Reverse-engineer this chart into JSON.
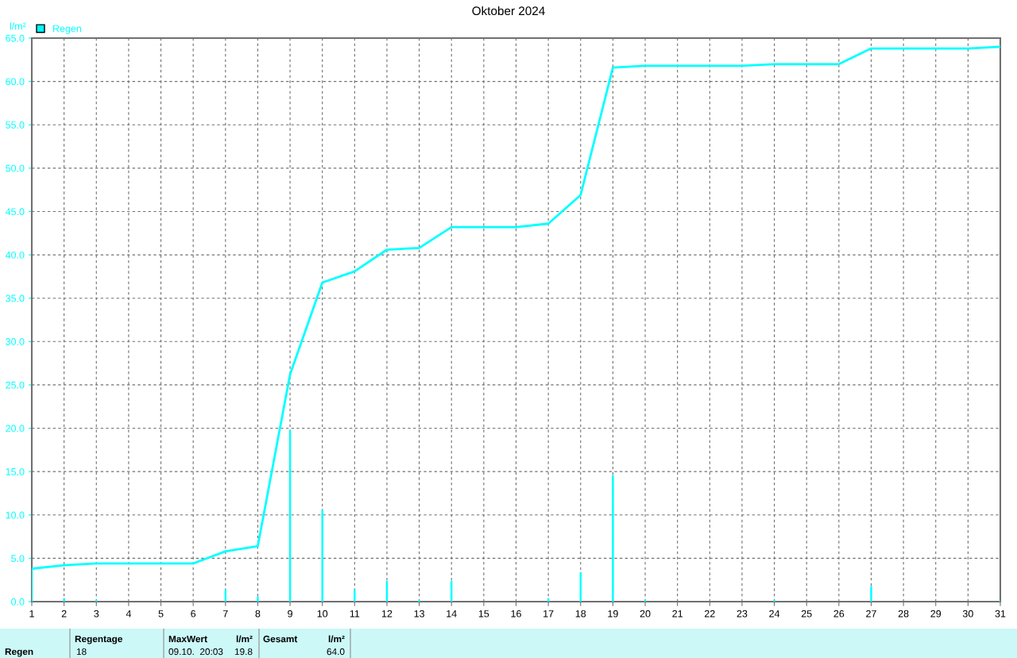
{
  "chart_data": {
    "type": "bar",
    "title": "Oktober 2024",
    "ylabel": "l/m²",
    "x": [
      1,
      2,
      3,
      4,
      5,
      6,
      7,
      8,
      9,
      10,
      11,
      12,
      13,
      14,
      15,
      16,
      17,
      18,
      19,
      20,
      21,
      22,
      23,
      24,
      25,
      26,
      27,
      28,
      29,
      30,
      31
    ],
    "series": [
      {
        "color": "#00ffff",
        "values": [
          3.8,
          0.4,
          0.2,
          null,
          null,
          null,
          1.4,
          0.6,
          19.8,
          10.6,
          1.4,
          2.4,
          0.2,
          2.4,
          null,
          null,
          0.4,
          3.4,
          14.6,
          0.2,
          null,
          null,
          null,
          0.2,
          null,
          null,
          1.8,
          null,
          null,
          null,
          0.1
        ]
      },
      {
        "type": "line",
        "name": "Regen",
        "color": "#00ffff",
        "x": [
          1,
          2,
          3,
          6,
          7,
          8,
          9,
          10,
          11,
          12,
          13,
          14,
          16,
          17,
          18,
          19,
          20,
          23,
          24,
          26,
          27,
          30,
          31
        ],
        "values": [
          3.8,
          4.2,
          4.4,
          4.4,
          5.8,
          6.4,
          26.2,
          36.8,
          38.1,
          40.6,
          40.8,
          43.2,
          43.2,
          43.6,
          46.9,
          61.6,
          61.8,
          61.8,
          62.0,
          62.0,
          63.8,
          63.8,
          64.0
        ]
      }
    ],
    "xlim": [
      1,
      31
    ],
    "xticks": [
      1,
      2,
      3,
      4,
      5,
      6,
      7,
      8,
      9,
      10,
      11,
      12,
      13,
      14,
      15,
      16,
      17,
      18,
      19,
      20,
      21,
      22,
      23,
      24,
      25,
      26,
      27,
      28,
      29,
      30,
      31
    ],
    "ylim": [
      0,
      65
    ],
    "yticks": [
      {
        "value": 0,
        "label": "0.0"
      },
      {
        "value": 5,
        "label": "5.0"
      },
      {
        "value": 10,
        "label": "10.0"
      },
      {
        "value": 15,
        "label": "15.0"
      },
      {
        "value": 20,
        "label": "20.0"
      },
      {
        "value": 25,
        "label": "25.0"
      },
      {
        "value": 30,
        "label": "30.0"
      },
      {
        "value": 35,
        "label": "35.0"
      },
      {
        "value": 40,
        "label": "40.0"
      },
      {
        "value": 45,
        "label": "45.0"
      },
      {
        "value": 50,
        "label": "50.0"
      },
      {
        "value": 55,
        "label": "55.0"
      },
      {
        "value": 60,
        "label": "60.0"
      },
      {
        "value": 65,
        "label": "65.0"
      }
    ],
    "grid": true,
    "legend": "top left",
    "marker": "none",
    "line_style": "solid",
    "annotations": [
      "Regen",
      "Regentage",
      "18",
      "MaxWert",
      "l/m²",
      "09.10.  20:03",
      "19.8",
      "Gesamt",
      "l/m²",
      "64.0"
    ]
  }
}
